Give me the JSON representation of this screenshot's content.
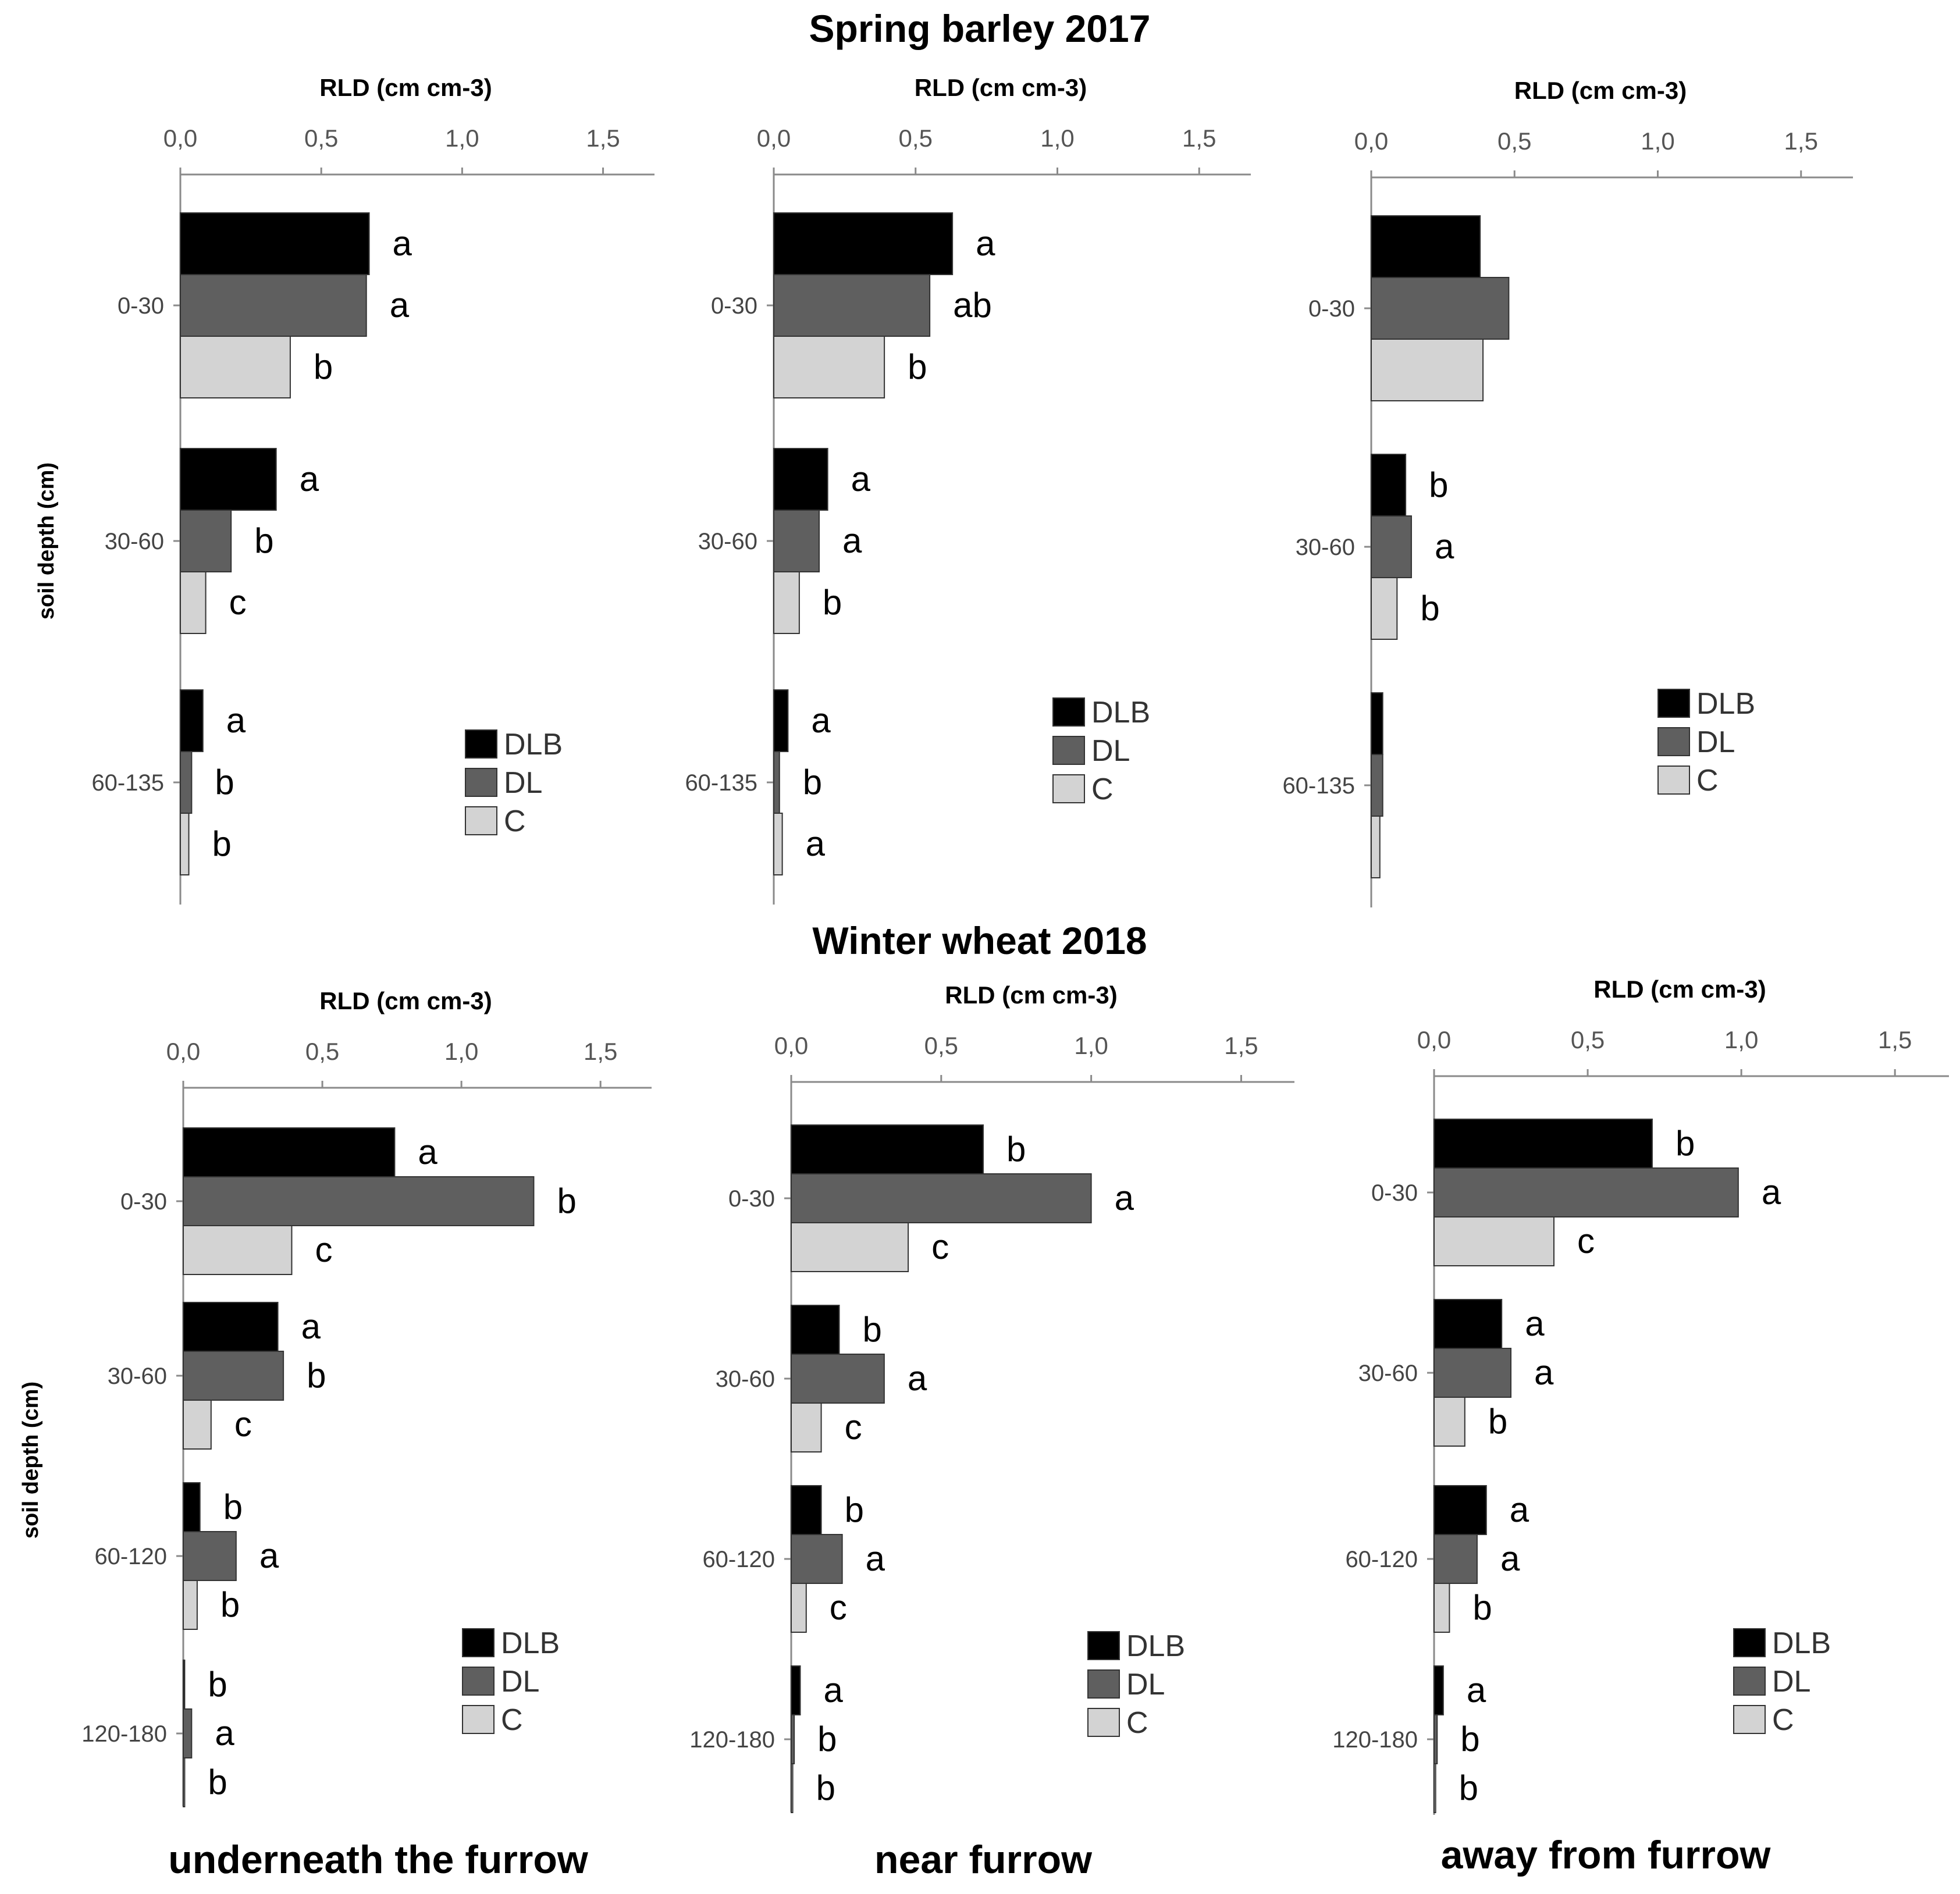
{
  "titles": {
    "top": "Spring barley 2017",
    "bottom": "Winter wheat 2018",
    "col1": "underneath the furrow",
    "col2": "near furrow",
    "col3": "away from furrow"
  },
  "y_axis_label": "soil depth (cm)",
  "colors": {
    "DLB": "#000000",
    "DL": "#5f5f5f",
    "C": "#d3d3d3"
  },
  "chart_data": [
    {
      "type": "bar",
      "orientation": "horizontal",
      "title": "Spring barley 2017 - underneath the furrow",
      "xlabel": "RLD (cm cm-3)",
      "ylabel": "soil depth (cm)",
      "xlim": [
        0,
        1.65
      ],
      "xticks": [
        "0,0",
        "0,5",
        "1,0",
        "1,5"
      ],
      "categories": [
        "0-30",
        "30-60",
        "60-135"
      ],
      "series": [
        {
          "name": "DLB",
          "values": [
            0.67,
            0.34,
            0.08
          ],
          "letters": [
            "a",
            "a",
            "a"
          ]
        },
        {
          "name": "DL",
          "values": [
            0.66,
            0.18,
            0.04
          ],
          "letters": [
            "a",
            "b",
            "b"
          ]
        },
        {
          "name": "C",
          "values": [
            0.39,
            0.09,
            0.03
          ],
          "letters": [
            "b",
            "c",
            "b"
          ]
        }
      ],
      "legend": [
        "DLB",
        "DL",
        "C"
      ]
    },
    {
      "type": "bar",
      "orientation": "horizontal",
      "title": "Spring barley 2017 - near furrow",
      "xlabel": "RLD (cm cm-3)",
      "ylabel": "soil depth (cm)",
      "xlim": [
        0,
        1.65
      ],
      "xticks": [
        "0,0",
        "0,5",
        "1,0",
        "1,5"
      ],
      "categories": [
        "0-30",
        "30-60",
        "60-135"
      ],
      "series": [
        {
          "name": "DLB",
          "values": [
            0.63,
            0.19,
            0.05
          ],
          "letters": [
            "a",
            "a",
            "a"
          ]
        },
        {
          "name": "DL",
          "values": [
            0.55,
            0.16,
            0.02
          ],
          "letters": [
            "ab",
            "a",
            "b"
          ]
        },
        {
          "name": "C",
          "values": [
            0.39,
            0.09,
            0.03
          ],
          "letters": [
            "b",
            "b",
            "a"
          ]
        }
      ],
      "legend": [
        "DLB",
        "DL",
        "C"
      ]
    },
    {
      "type": "bar",
      "orientation": "horizontal",
      "title": "Spring barley 2017 - away from furrow",
      "xlabel": "RLD (cm cm-3)",
      "ylabel": "soil depth (cm)",
      "xlim": [
        0,
        1.65
      ],
      "xticks": [
        "0,0",
        "0,5",
        "1,0",
        "1,5"
      ],
      "categories": [
        "0-30",
        "30-60",
        "60-135"
      ],
      "series": [
        {
          "name": "DLB",
          "values": [
            0.38,
            0.12,
            0.04
          ],
          "letters": [
            "",
            "b",
            ""
          ]
        },
        {
          "name": "DL",
          "values": [
            0.48,
            0.14,
            0.04
          ],
          "letters": [
            "",
            "a",
            ""
          ]
        },
        {
          "name": "C",
          "values": [
            0.39,
            0.09,
            0.03
          ],
          "letters": [
            "",
            "b",
            ""
          ]
        }
      ],
      "legend": [
        "DLB",
        "DL",
        "C"
      ]
    },
    {
      "type": "bar",
      "orientation": "horizontal",
      "title": "Winter wheat 2018 - underneath the furrow",
      "xlabel": "RLD (cm cm-3)",
      "ylabel": "soil depth (cm)",
      "xlim": [
        0,
        1.65
      ],
      "xticks": [
        "0,0",
        "0,5",
        "1,0",
        "1,5"
      ],
      "categories": [
        "0-30",
        "30-60",
        "60-120",
        "120-180"
      ],
      "series": [
        {
          "name": "DLB",
          "values": [
            0.76,
            0.34,
            0.06,
            0.005
          ],
          "letters": [
            "a",
            "a",
            "b",
            "b"
          ]
        },
        {
          "name": "DL",
          "values": [
            1.26,
            0.36,
            0.19,
            0.03
          ],
          "letters": [
            "b",
            "b",
            "a",
            "a"
          ]
        },
        {
          "name": "C",
          "values": [
            0.39,
            0.1,
            0.05,
            0.005
          ],
          "letters": [
            "c",
            "c",
            "b",
            "b"
          ]
        }
      ],
      "legend": [
        "DLB",
        "DL",
        "C"
      ]
    },
    {
      "type": "bar",
      "orientation": "horizontal",
      "title": "Winter wheat 2018 - near furrow",
      "xlabel": "RLD (cm cm-3)",
      "ylabel": "soil depth (cm)",
      "xlim": [
        0,
        1.65
      ],
      "xticks": [
        "0,0",
        "0,5",
        "1,0",
        "1,5"
      ],
      "categories": [
        "0-30",
        "30-60",
        "60-120",
        "120-180"
      ],
      "series": [
        {
          "name": "DLB",
          "values": [
            0.64,
            0.16,
            0.1,
            0.03
          ],
          "letters": [
            "b",
            "b",
            "b",
            "a"
          ]
        },
        {
          "name": "DL",
          "values": [
            1.0,
            0.31,
            0.17,
            0.01
          ],
          "letters": [
            "a",
            "a",
            "a",
            "b"
          ]
        },
        {
          "name": "C",
          "values": [
            0.39,
            0.1,
            0.05,
            0.005
          ],
          "letters": [
            "c",
            "c",
            "c",
            "b"
          ]
        }
      ],
      "legend": [
        "DLB",
        "DL",
        "C"
      ]
    },
    {
      "type": "bar",
      "orientation": "horizontal",
      "title": "Winter wheat 2018 - away from furrow",
      "xlabel": "RLD (cm cm-3)",
      "ylabel": "soil depth (cm)",
      "xlim": [
        0,
        1.65
      ],
      "xticks": [
        "0,0",
        "0,5",
        "1,0",
        "1,5"
      ],
      "categories": [
        "0-30",
        "30-60",
        "60-120",
        "120-180"
      ],
      "series": [
        {
          "name": "DLB",
          "values": [
            0.71,
            0.22,
            0.17,
            0.03
          ],
          "letters": [
            "b",
            "a",
            "a",
            "a"
          ]
        },
        {
          "name": "DL",
          "values": [
            0.99,
            0.25,
            0.14,
            0.01
          ],
          "letters": [
            "a",
            "a",
            "a",
            "b"
          ]
        },
        {
          "name": "C",
          "values": [
            0.39,
            0.1,
            0.05,
            0.005
          ],
          "letters": [
            "c",
            "b",
            "b",
            "b"
          ]
        }
      ],
      "legend": [
        "DLB",
        "DL",
        "C"
      ]
    }
  ]
}
